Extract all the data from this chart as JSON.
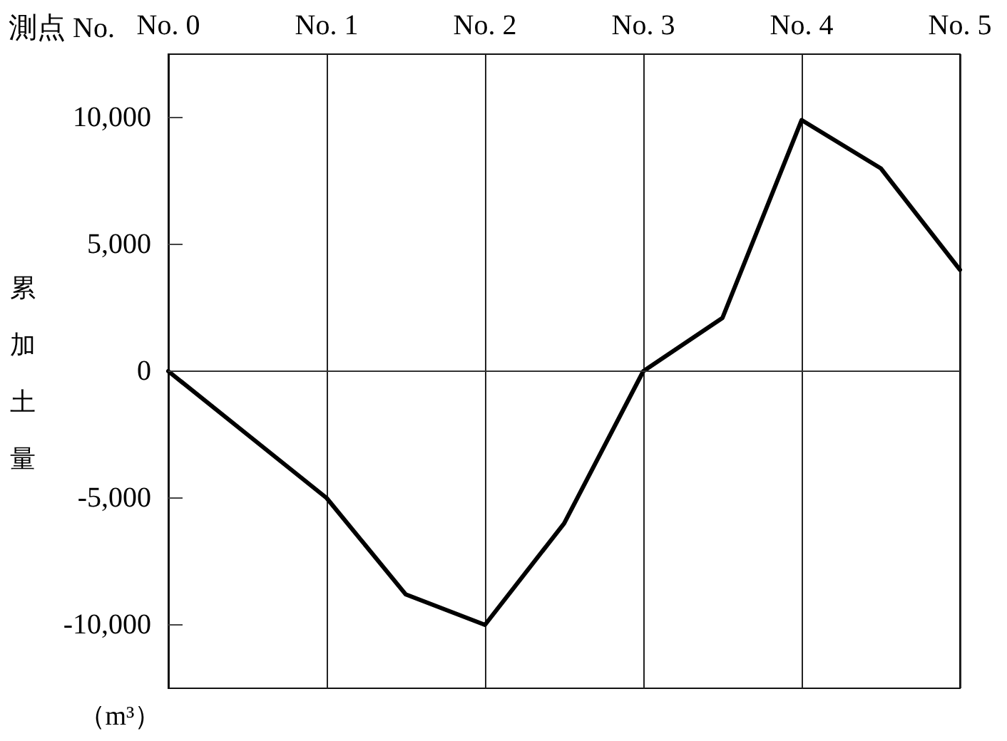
{
  "chart_data": {
    "type": "line",
    "xlabel": "測点 No.",
    "ylabel": "累加土量",
    "annotations": [
      "（m³）"
    ],
    "x": [
      0,
      0.5,
      1,
      1.5,
      2,
      2.5,
      3,
      3.5,
      4,
      4.5,
      5
    ],
    "series": [
      {
        "color": "#000000",
        "values": [
          0,
          -2500,
          -5000,
          -8800,
          -10000,
          -6000,
          0,
          2100,
          9900,
          8000,
          4000
        ]
      }
    ],
    "xlim": [
      0,
      5
    ],
    "xticks": [
      {
        "value": 0,
        "label": "No. 0"
      },
      {
        "value": 1,
        "label": "No. 1"
      },
      {
        "value": 2,
        "label": "No. 2"
      },
      {
        "value": 3,
        "label": "No. 3"
      },
      {
        "value": 4,
        "label": "No. 4"
      },
      {
        "value": 5,
        "label": "No. 5"
      }
    ],
    "ylim": [
      -12500,
      12500
    ],
    "yticks": [
      {
        "value": -10000,
        "label": "-10,000"
      },
      {
        "value": -5000,
        "label": "-5,000"
      },
      0,
      {
        "value": 5000,
        "label": "5,000"
      },
      {
        "value": 10000,
        "label": "10,000"
      }
    ],
    "grid": "x",
    "marker": "none",
    "line_style": "solid",
    "ref_lines": [
      {
        "axis": "y",
        "value": 0
      }
    ]
  }
}
